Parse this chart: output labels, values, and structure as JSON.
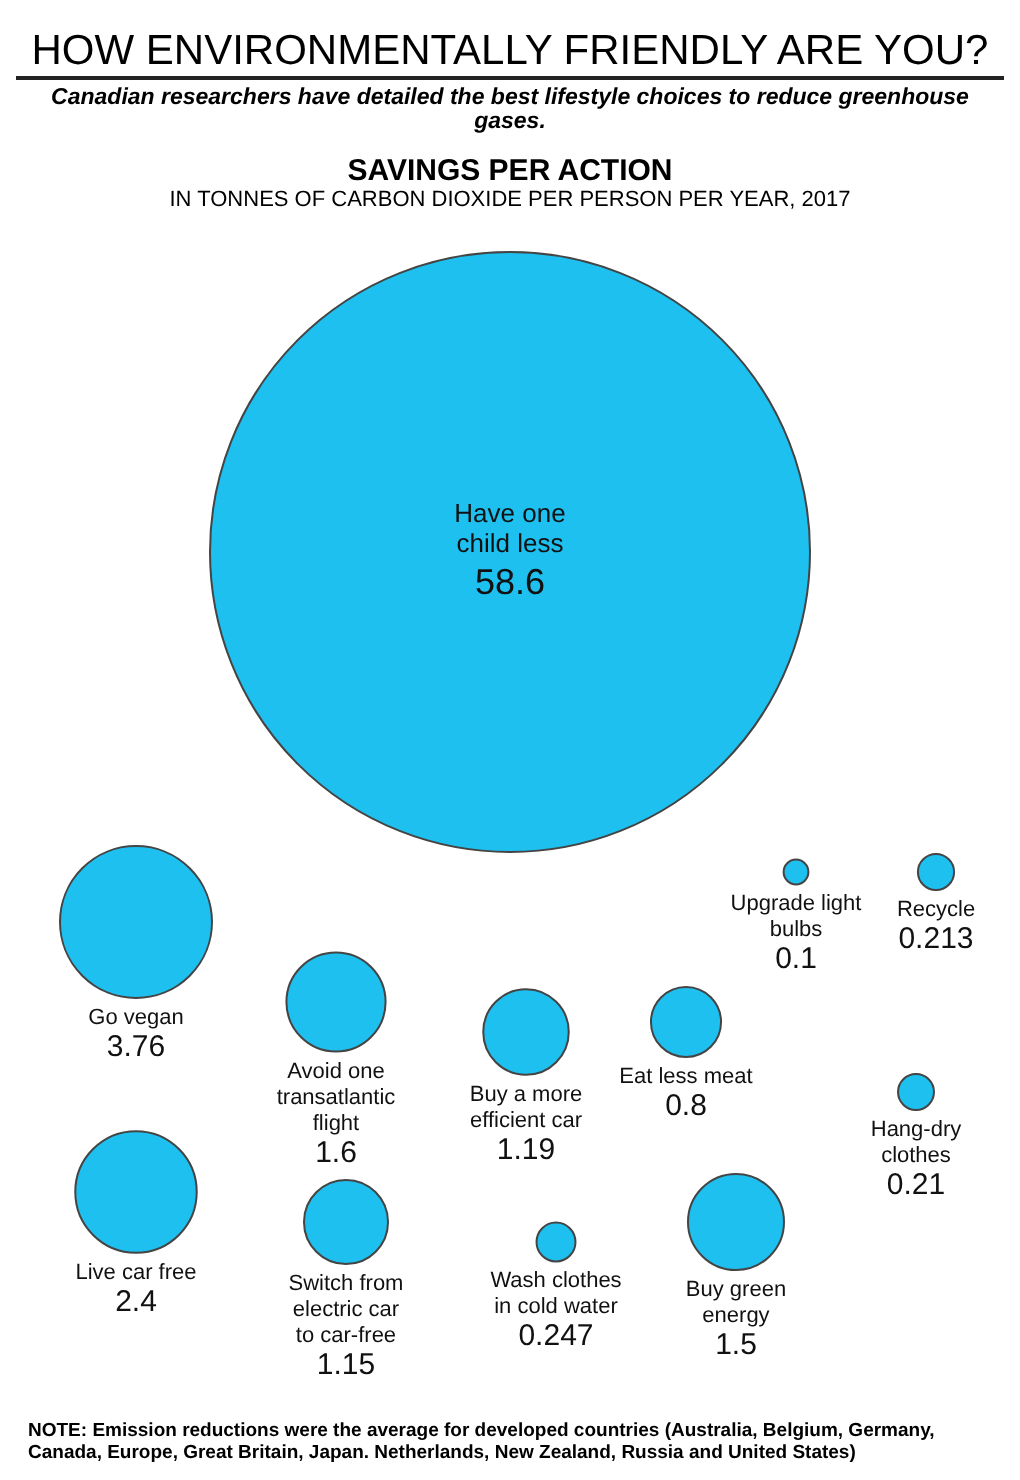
{
  "chart_data": {
    "type": "other",
    "title": "HOW ENVIRONMENTALLY FRIENDLY ARE YOU?",
    "subtitle": "Canadian researchers have detailed the best lifestyle choices to reduce greenhouse gases.",
    "annotations": [
      "SAVINGS PER ACTION",
      "IN TONNES OF CARBON DIOXIDE PER PERSON PER YEAR, 2017",
      "NOTE: Emission reductions were the average for developed countries (Australia, Belgium, Germany, Canada, Europe, Great Britain, Japan. Netherlands, New Zealand, Russia and United States)"
    ],
    "categories": [
      "Have one child less",
      "Go vegan",
      "Avoid one transatlantic flight",
      "Live car free",
      "Switch from electric car to car-free",
      "Buy a more efficient car",
      "Eat less meat",
      "Wash clothes in cold water",
      "Buy green energy",
      "Recycle",
      "Upgrade light bulbs",
      "Hang-dry clothes"
    ],
    "values": [
      58.6,
      3.76,
      1.6,
      2.4,
      1.15,
      1.19,
      0.8,
      0.247,
      1.5,
      0.213,
      0.1,
      0.21
    ],
    "color": "#1ec0f0",
    "data_labels": true
  }
}
